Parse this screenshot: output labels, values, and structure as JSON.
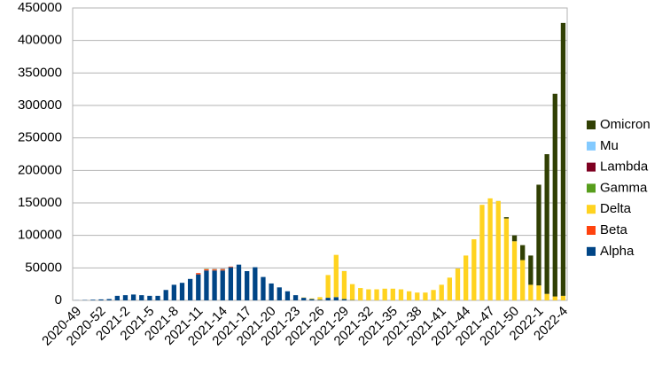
{
  "chart_data": {
    "type": "stacked-bar",
    "categories": [
      "2020-49",
      null,
      null,
      "2020-52",
      null,
      null,
      "2021-2",
      null,
      null,
      "2021-5",
      null,
      null,
      "2021-8",
      null,
      null,
      "2021-11",
      null,
      null,
      "2021-14",
      null,
      null,
      "2021-17",
      null,
      null,
      "2021-20",
      null,
      null,
      "2021-23",
      null,
      null,
      "2021-26",
      null,
      null,
      "2021-29",
      null,
      null,
      "2021-32",
      null,
      null,
      "2021-35",
      null,
      null,
      "2021-38",
      null,
      null,
      "2021-41",
      null,
      null,
      "2021-44",
      null,
      null,
      "2021-47",
      null,
      null,
      "2021-50",
      null,
      null,
      "2022-1",
      null,
      null,
      "2022-4"
    ],
    "series": [
      {
        "name": "Alpha",
        "color": "#004586",
        "values": [
          200,
          500,
          1000,
          1500,
          2000,
          7000,
          8000,
          9000,
          8000,
          7000,
          7000,
          16000,
          24000,
          27000,
          33000,
          40000,
          46000,
          46000,
          46000,
          51000,
          55000,
          45000,
          51000,
          36000,
          26000,
          20000,
          14000,
          8000,
          4000,
          2000,
          1000,
          4000,
          5000,
          2000,
          500,
          0,
          0,
          0,
          0,
          0,
          0,
          0,
          0,
          0,
          0,
          0,
          0,
          0,
          0,
          0,
          0,
          0,
          0,
          0,
          0,
          0,
          0,
          0,
          0,
          0,
          0
        ]
      },
      {
        "name": "Beta",
        "color": "#ff420e",
        "values": [
          0,
          0,
          0,
          0,
          0,
          0,
          0,
          0,
          0,
          0,
          0,
          0,
          0,
          0,
          0,
          2000,
          2000,
          1500,
          1500,
          1000,
          0,
          0,
          0,
          0,
          0,
          0,
          0,
          0,
          0,
          0,
          0,
          0,
          0,
          0,
          0,
          0,
          0,
          0,
          0,
          0,
          0,
          0,
          0,
          0,
          0,
          0,
          0,
          0,
          0,
          0,
          0,
          0,
          0,
          0,
          0,
          0,
          0,
          0,
          0,
          0,
          0
        ]
      },
      {
        "name": "Delta",
        "color": "#ffd320",
        "values": [
          0,
          0,
          0,
          0,
          0,
          0,
          0,
          0,
          0,
          0,
          0,
          0,
          0,
          0,
          0,
          0,
          0,
          0,
          0,
          0,
          0,
          0,
          0,
          0,
          0,
          0,
          0,
          0,
          500,
          1000,
          4000,
          35000,
          65000,
          43000,
          24500,
          19000,
          17000,
          17000,
          18000,
          18000,
          17000,
          14000,
          12000,
          12000,
          16000,
          24000,
          35000,
          49000,
          69000,
          94000,
          147000,
          157000,
          153000,
          126000,
          91000,
          62000,
          24000,
          23000,
          10000,
          6000,
          7000
        ]
      },
      {
        "name": "Gamma",
        "color": "#579d1c",
        "values": [
          0,
          0,
          0,
          0,
          0,
          0,
          0,
          0,
          0,
          0,
          0,
          0,
          0,
          0,
          0,
          0,
          500,
          500,
          500,
          0,
          0,
          0,
          0,
          0,
          0,
          0,
          0,
          0,
          0,
          0,
          0,
          0,
          0,
          0,
          0,
          0,
          0,
          0,
          0,
          0,
          0,
          0,
          0,
          0,
          0,
          0,
          0,
          0,
          0,
          0,
          0,
          0,
          0,
          0,
          0,
          0,
          0,
          0,
          0,
          0,
          0
        ]
      },
      {
        "name": "Lambda",
        "color": "#7e0021",
        "values": [
          0,
          0,
          0,
          0,
          0,
          0,
          0,
          0,
          0,
          0,
          0,
          0,
          0,
          0,
          0,
          0,
          0,
          300,
          500,
          0,
          0,
          0,
          0,
          0,
          0,
          0,
          0,
          0,
          0,
          0,
          0,
          0,
          0,
          0,
          0,
          0,
          0,
          0,
          0,
          0,
          0,
          0,
          0,
          0,
          0,
          0,
          0,
          0,
          0,
          0,
          0,
          0,
          0,
          0,
          0,
          0,
          0,
          0,
          0,
          0,
          0
        ]
      },
      {
        "name": "Mu",
        "color": "#83caff",
        "values": [
          0,
          0,
          0,
          0,
          0,
          0,
          0,
          0,
          0,
          0,
          0,
          0,
          0,
          0,
          0,
          0,
          0,
          0,
          0,
          0,
          0,
          0,
          0,
          0,
          0,
          0,
          0,
          0,
          0,
          0,
          0,
          0,
          0,
          300,
          0,
          0,
          0,
          0,
          0,
          0,
          0,
          0,
          0,
          0,
          0,
          0,
          0,
          0,
          0,
          0,
          0,
          0,
          300,
          0,
          0,
          0,
          0,
          0,
          0,
          0,
          0
        ]
      },
      {
        "name": "Omicron",
        "color": "#314004",
        "values": [
          0,
          0,
          0,
          0,
          0,
          0,
          0,
          0,
          0,
          0,
          0,
          0,
          0,
          0,
          0,
          0,
          0,
          0,
          0,
          0,
          0,
          0,
          0,
          0,
          0,
          0,
          0,
          0,
          0,
          0,
          0,
          0,
          0,
          0,
          0,
          0,
          0,
          0,
          0,
          0,
          0,
          0,
          0,
          0,
          0,
          0,
          0,
          0,
          0,
          0,
          0,
          0,
          0,
          2000,
          9000,
          23000,
          45000,
          155000,
          215000,
          312000,
          420000
        ]
      }
    ],
    "ylim": [
      0,
      450000
    ],
    "yticks": [
      0,
      50000,
      100000,
      150000,
      200000,
      250000,
      300000,
      350000,
      400000,
      450000
    ],
    "grid": true,
    "legend": "right"
  }
}
